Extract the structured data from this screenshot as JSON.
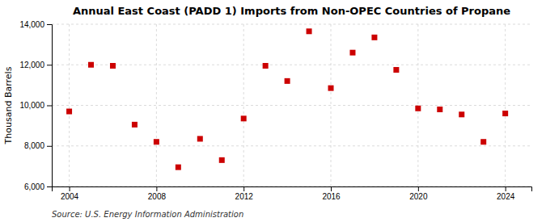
{
  "chart_data": {
    "type": "scatter",
    "title": "Annual East Coast (PADD 1) Imports from Non-OPEC Countries of Propane",
    "ylabel": "Thousand Barrels",
    "source": "Source: U.S. Energy Information Administration",
    "x": [
      2004,
      2005,
      2006,
      2007,
      2008,
      2009,
      2010,
      2011,
      2012,
      2013,
      2014,
      2015,
      2016,
      2017,
      2018,
      2019,
      2020,
      2021,
      2022,
      2023,
      2024
    ],
    "values": [
      9700,
      12000,
      11950,
      9050,
      8200,
      6950,
      8350,
      7300,
      9350,
      11950,
      11200,
      13650,
      10850,
      12600,
      13350,
      11750,
      9850,
      9800,
      9550,
      8200,
      9600
    ],
    "color": "#cc0000",
    "marker": "square",
    "xlim": [
      2003.2,
      2025.2
    ],
    "xticks": [
      2004,
      2008,
      2012,
      2016,
      2020,
      2024
    ],
    "ylim": [
      6000,
      14000
    ],
    "yticks": [
      {
        "value": 6000,
        "label": "6,000"
      },
      {
        "value": 8000,
        "label": "8,000"
      },
      {
        "value": 10000,
        "label": "10,000"
      },
      {
        "value": 12000,
        "label": "12,000"
      },
      {
        "value": 14000,
        "label": "14,000"
      }
    ],
    "grid": true
  }
}
